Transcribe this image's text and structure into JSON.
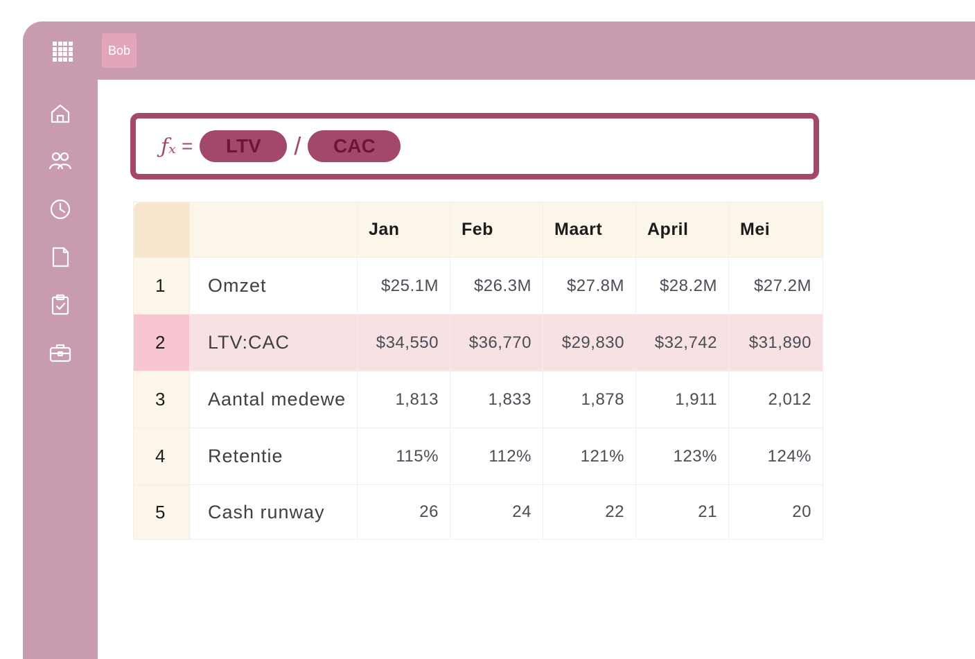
{
  "topbar": {
    "user_label": "Bob"
  },
  "sidebar": {
    "items": [
      {
        "icon": "home-icon"
      },
      {
        "icon": "people-icon"
      },
      {
        "icon": "clock-icon"
      },
      {
        "icon": "document-icon"
      },
      {
        "icon": "clipboard-check-icon"
      },
      {
        "icon": "briefcase-icon"
      }
    ]
  },
  "formula": {
    "fx": "ƒₓ",
    "equals": "=",
    "operand1": "LTV",
    "operator": "/",
    "operand2": "CAC"
  },
  "table": {
    "columns": [
      "Jan",
      "Feb",
      "Maart",
      "April",
      "Mei"
    ],
    "rows": [
      {
        "num": "1",
        "label": "Omzet",
        "values": [
          "$25.1M",
          "$26.3M",
          "$27.8M",
          "$28.2M",
          "$27.2M"
        ]
      },
      {
        "num": "2",
        "label": "LTV:CAC",
        "values": [
          "$34,550",
          "$36,770",
          "$29,830",
          "$32,742",
          "$31,890"
        ]
      },
      {
        "num": "3",
        "label": "Aantal medewe",
        "values": [
          "1,813",
          "1,833",
          "1,878",
          "1,911",
          "2,012"
        ]
      },
      {
        "num": "4",
        "label": "Retentie",
        "values": [
          "115%",
          "112%",
          "121%",
          "123%",
          "124%"
        ]
      },
      {
        "num": "5",
        "label": "Cash runway",
        "values": [
          "26",
          "24",
          "22",
          "21",
          "20"
        ]
      }
    ]
  },
  "colors": {
    "chrome": "#c89cae",
    "accent": "#a2486a",
    "highlight_row": "#f7e1e2",
    "header_bg": "#fcf5ea"
  }
}
